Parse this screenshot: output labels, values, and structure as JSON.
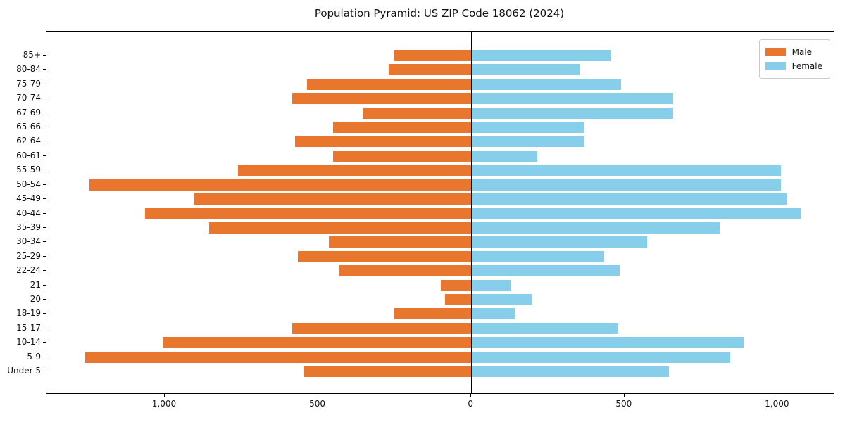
{
  "figure": {
    "title": "Population Pyramid: US ZIP Code 18062 (2024)"
  },
  "chart_data": {
    "type": "bar",
    "subtype": "population-pyramid",
    "orientation": "horizontal",
    "title": "Population Pyramid: US ZIP Code 18062 (2024)",
    "categories_top_to_bottom": [
      "85+",
      "80-84",
      "75-79",
      "70-74",
      "67-69",
      "65-66",
      "62-64",
      "60-61",
      "55-59",
      "50-54",
      "45-49",
      "40-44",
      "35-39",
      "30-34",
      "25-29",
      "22-24",
      "21",
      "20",
      "18-19",
      "15-17",
      "10-14",
      "5-9",
      "Under 5"
    ],
    "series": [
      {
        "name": "Male",
        "side": "left",
        "color": "#e8762d",
        "values": [
          250,
          270,
          535,
          585,
          355,
          450,
          575,
          450,
          760,
          1245,
          905,
          1065,
          855,
          465,
          565,
          430,
          100,
          85,
          250,
          585,
          1005,
          1260,
          545
        ]
      },
      {
        "name": "Female",
        "side": "right",
        "color": "#87ceeb",
        "values": [
          455,
          355,
          490,
          660,
          660,
          370,
          370,
          215,
          1010,
          1010,
          1030,
          1075,
          810,
          575,
          435,
          485,
          130,
          200,
          145,
          480,
          890,
          845,
          645
        ]
      }
    ],
    "xlabel": "",
    "ylabel": "",
    "xlim": [
      -1386,
      1183
    ],
    "xticks": [
      {
        "value": -1000,
        "label": "1,000"
      },
      {
        "value": -500,
        "label": "500"
      },
      {
        "value": 0,
        "label": "0"
      },
      {
        "value": 500,
        "label": "500"
      },
      {
        "value": 1000,
        "label": "1,000"
      }
    ],
    "zero_line": true,
    "grid": false,
    "background": "#ffffff",
    "axis_color": "#000000",
    "legend": {
      "position": "top-right",
      "entries": [
        "Male",
        "Female"
      ]
    }
  }
}
